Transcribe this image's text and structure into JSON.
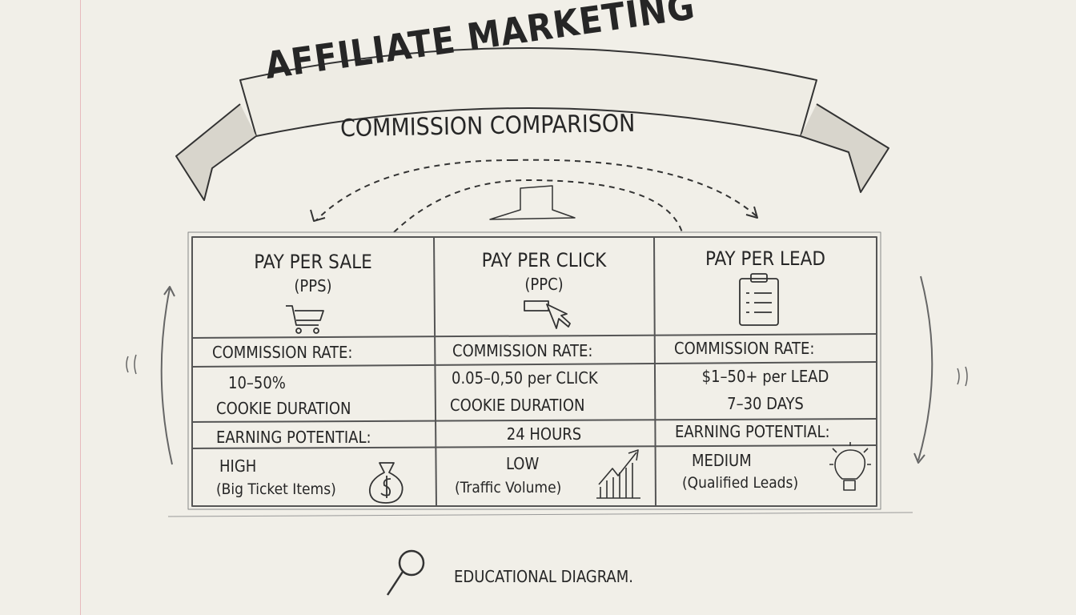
{
  "banner": {
    "title": "AFFILIATE MARKETING",
    "subtitle": "COMMISSION COMPARISON"
  },
  "columns": [
    {
      "title": "PAY PER SALE",
      "abbr": "(PPS)",
      "icon": "shopping-cart-icon",
      "commission_label": "COMMISSION RATE:",
      "commission_value": "10–50%",
      "cookie_label": "COOKIE DURATION",
      "earning_label": "EARNING POTENTIAL:",
      "earning_value": "HIGH",
      "earning_note": "(Big Ticket Items)",
      "earning_icon": "money-bag-icon"
    },
    {
      "title": "PAY PER CLICK",
      "abbr": "(PPC)",
      "icon": "cursor-click-icon",
      "commission_label": "COMMISSION RATE:",
      "commission_value": "0.05–0,50 per CLICK",
      "cookie_label": "COOKIE DURATION",
      "cookie_value": "24 HOURS",
      "earning_value": "LOW",
      "earning_note": "(Traffic Volume)",
      "earning_icon": "growth-chart-icon"
    },
    {
      "title": "PAY PER LEAD",
      "icon": "clipboard-icon",
      "commission_label": "COMMISSION RATE:",
      "commission_value": "$1–50+ per LEAD",
      "cookie_value": "7–30 DAYS",
      "earning_label": "EARNING POTENTIAL:",
      "earning_value": "MEDIUM",
      "earning_note": "(Qualified Leads)",
      "earning_icon": "lightbulb-icon"
    }
  ],
  "footer": {
    "label": "EDUCATIONAL DIAGRAM.",
    "icon": "magnifier-icon"
  }
}
